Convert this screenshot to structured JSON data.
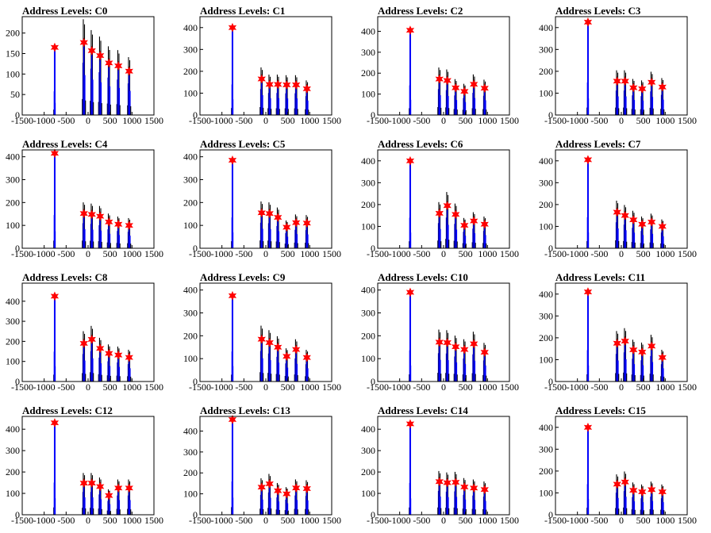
{
  "chart_data": [
    {
      "type": "histogram",
      "title": "Address Levels: C0",
      "xlim": [
        -1500,
        1500
      ],
      "ylim": [
        0,
        240
      ],
      "xticks": [
        -1500,
        -1000,
        -500,
        0,
        500,
        1000,
        1500
      ],
      "yticks": [
        0,
        50,
        100,
        150,
        200
      ],
      "main_peak": {
        "x": -760,
        "y": 165
      },
      "peaks": [
        {
          "x": -760,
          "y": 165
        },
        {
          "x": -95,
          "y": 177
        },
        {
          "x": 85,
          "y": 157
        },
        {
          "x": 275,
          "y": 145
        },
        {
          "x": 475,
          "y": 127
        },
        {
          "x": 690,
          "y": 120
        },
        {
          "x": 935,
          "y": 107
        }
      ]
    },
    {
      "type": "histogram",
      "title": "Address Levels: C1",
      "xlim": [
        -1500,
        1500
      ],
      "ylim": [
        0,
        450
      ],
      "xticks": [
        -1500,
        -1000,
        -500,
        0,
        500,
        1000,
        1500
      ],
      "yticks": [
        0,
        100,
        200,
        300,
        400
      ],
      "main_peak": {
        "x": -760,
        "y": 400
      },
      "peaks": [
        {
          "x": -760,
          "y": 400
        },
        {
          "x": -95,
          "y": 165
        },
        {
          "x": 85,
          "y": 140
        },
        {
          "x": 275,
          "y": 140
        },
        {
          "x": 475,
          "y": 138
        },
        {
          "x": 690,
          "y": 138
        },
        {
          "x": 935,
          "y": 120
        }
      ]
    },
    {
      "type": "histogram",
      "title": "Address Levels: C2",
      "xlim": [
        -1500,
        1500
      ],
      "ylim": [
        0,
        470
      ],
      "xticks": [
        -1500,
        -1000,
        -500,
        0,
        500,
        1000,
        1500
      ],
      "yticks": [
        0,
        100,
        200,
        300,
        400
      ],
      "main_peak": {
        "x": -760,
        "y": 405
      },
      "peaks": [
        {
          "x": -760,
          "y": 405
        },
        {
          "x": -95,
          "y": 172
        },
        {
          "x": 85,
          "y": 165
        },
        {
          "x": 275,
          "y": 130
        },
        {
          "x": 475,
          "y": 113
        },
        {
          "x": 690,
          "y": 147
        },
        {
          "x": 935,
          "y": 128
        }
      ]
    },
    {
      "type": "histogram",
      "title": "Address Levels: C3",
      "xlim": [
        -1500,
        1500
      ],
      "ylim": [
        0,
        450
      ],
      "xticks": [
        -1500,
        -1000,
        -500,
        0,
        500,
        1000,
        1500
      ],
      "yticks": [
        0,
        100,
        200,
        300,
        400
      ],
      "main_peak": {
        "x": -760,
        "y": 425
      },
      "peaks": [
        {
          "x": -760,
          "y": 425
        },
        {
          "x": -95,
          "y": 155
        },
        {
          "x": 85,
          "y": 155
        },
        {
          "x": 275,
          "y": 125
        },
        {
          "x": 475,
          "y": 120
        },
        {
          "x": 690,
          "y": 150
        },
        {
          "x": 935,
          "y": 128
        }
      ]
    },
    {
      "type": "histogram",
      "title": "Address Levels: C4",
      "xlim": [
        -1500,
        1500
      ],
      "ylim": [
        0,
        430
      ],
      "xticks": [
        -1500,
        -1000,
        -500,
        0,
        500,
        1000,
        1500
      ],
      "yticks": [
        0,
        100,
        200,
        300,
        400
      ],
      "main_peak": {
        "x": -760,
        "y": 415
      },
      "peaks": [
        {
          "x": -760,
          "y": 415
        },
        {
          "x": -95,
          "y": 152
        },
        {
          "x": 85,
          "y": 148
        },
        {
          "x": 275,
          "y": 140
        },
        {
          "x": 475,
          "y": 115
        },
        {
          "x": 690,
          "y": 105
        },
        {
          "x": 935,
          "y": 100
        }
      ]
    },
    {
      "type": "histogram",
      "title": "Address Levels: C5",
      "xlim": [
        -1500,
        1500
      ],
      "ylim": [
        0,
        430
      ],
      "xticks": [
        -1500,
        -1000,
        -500,
        0,
        500,
        1000,
        1500
      ],
      "yticks": [
        0,
        100,
        200,
        300,
        400
      ],
      "main_peak": {
        "x": -760,
        "y": 385
      },
      "peaks": [
        {
          "x": -760,
          "y": 385
        },
        {
          "x": -95,
          "y": 155
        },
        {
          "x": 85,
          "y": 152
        },
        {
          "x": 275,
          "y": 135
        },
        {
          "x": 475,
          "y": 92
        },
        {
          "x": 690,
          "y": 112
        },
        {
          "x": 935,
          "y": 110
        }
      ]
    },
    {
      "type": "histogram",
      "title": "Address Levels: C6",
      "xlim": [
        -1500,
        1500
      ],
      "ylim": [
        0,
        450
      ],
      "xticks": [
        -1500,
        -1000,
        -500,
        0,
        500,
        1000,
        1500
      ],
      "yticks": [
        0,
        100,
        200,
        300,
        400
      ],
      "main_peak": {
        "x": -760,
        "y": 400
      },
      "peaks": [
        {
          "x": -760,
          "y": 400
        },
        {
          "x": -95,
          "y": 160
        },
        {
          "x": 85,
          "y": 195
        },
        {
          "x": 275,
          "y": 155
        },
        {
          "x": 475,
          "y": 105
        },
        {
          "x": 690,
          "y": 125
        },
        {
          "x": 935,
          "y": 110
        }
      ]
    },
    {
      "type": "histogram",
      "title": "Address Levels: C7",
      "xlim": [
        -1500,
        1500
      ],
      "ylim": [
        0,
        450
      ],
      "xticks": [
        -1500,
        -1000,
        -500,
        0,
        500,
        1000,
        1500
      ],
      "yticks": [
        0,
        100,
        200,
        300,
        400
      ],
      "main_peak": {
        "x": -760,
        "y": 405
      },
      "peaks": [
        {
          "x": -760,
          "y": 405
        },
        {
          "x": -95,
          "y": 165
        },
        {
          "x": 85,
          "y": 150
        },
        {
          "x": 275,
          "y": 130
        },
        {
          "x": 475,
          "y": 110
        },
        {
          "x": 690,
          "y": 120
        },
        {
          "x": 935,
          "y": 100
        }
      ]
    },
    {
      "type": "histogram",
      "title": "Address Levels: C8",
      "xlim": [
        -1500,
        1500
      ],
      "ylim": [
        0,
        490
      ],
      "xticks": [
        -1500,
        -1000,
        -500,
        0,
        500,
        1000,
        1500
      ],
      "yticks": [
        0,
        100,
        200,
        300,
        400
      ],
      "main_peak": {
        "x": -760,
        "y": 425
      },
      "peaks": [
        {
          "x": -760,
          "y": 425
        },
        {
          "x": -95,
          "y": 190
        },
        {
          "x": 85,
          "y": 210
        },
        {
          "x": 275,
          "y": 165
        },
        {
          "x": 475,
          "y": 140
        },
        {
          "x": 690,
          "y": 132
        },
        {
          "x": 935,
          "y": 120
        }
      ]
    },
    {
      "type": "histogram",
      "title": "Address Levels: C9",
      "xlim": [
        -1500,
        1500
      ],
      "ylim": [
        0,
        430
      ],
      "xticks": [
        -1500,
        -1000,
        -500,
        0,
        500,
        1000,
        1500
      ],
      "yticks": [
        0,
        100,
        200,
        300,
        400
      ],
      "main_peak": {
        "x": -760,
        "y": 375
      },
      "peaks": [
        {
          "x": -760,
          "y": 375
        },
        {
          "x": -95,
          "y": 185
        },
        {
          "x": 85,
          "y": 170
        },
        {
          "x": 275,
          "y": 150
        },
        {
          "x": 475,
          "y": 110
        },
        {
          "x": 690,
          "y": 140
        },
        {
          "x": 935,
          "y": 105
        }
      ]
    },
    {
      "type": "histogram",
      "title": "Address Levels: C10",
      "xlim": [
        -1500,
        1500
      ],
      "ylim": [
        0,
        430
      ],
      "xticks": [
        -1500,
        -1000,
        -500,
        0,
        500,
        1000,
        1500
      ],
      "yticks": [
        0,
        100,
        200,
        300,
        400
      ],
      "main_peak": {
        "x": -760,
        "y": 390
      },
      "peaks": [
        {
          "x": -760,
          "y": 390
        },
        {
          "x": -95,
          "y": 172
        },
        {
          "x": 85,
          "y": 170
        },
        {
          "x": 275,
          "y": 152
        },
        {
          "x": 475,
          "y": 140
        },
        {
          "x": 690,
          "y": 165
        },
        {
          "x": 935,
          "y": 128
        }
      ]
    },
    {
      "type": "histogram",
      "title": "Address Levels: C11",
      "xlim": [
        -1500,
        1500
      ],
      "ylim": [
        0,
        450
      ],
      "xticks": [
        -1500,
        -1000,
        -500,
        0,
        500,
        1000,
        1500
      ],
      "yticks": [
        0,
        100,
        200,
        300,
        400
      ],
      "main_peak": {
        "x": -760,
        "y": 410
      },
      "peaks": [
        {
          "x": -760,
          "y": 410
        },
        {
          "x": -95,
          "y": 175
        },
        {
          "x": 85,
          "y": 185
        },
        {
          "x": 275,
          "y": 145
        },
        {
          "x": 475,
          "y": 135
        },
        {
          "x": 690,
          "y": 162
        },
        {
          "x": 935,
          "y": 110
        }
      ]
    },
    {
      "type": "histogram",
      "title": "Address Levels: C12",
      "xlim": [
        -1500,
        1500
      ],
      "ylim": [
        0,
        460
      ],
      "xticks": [
        -1500,
        -1000,
        -500,
        0,
        500,
        1000,
        1500
      ],
      "yticks": [
        0,
        100,
        200,
        300,
        400
      ],
      "main_peak": {
        "x": -760,
        "y": 430
      },
      "peaks": [
        {
          "x": -760,
          "y": 430
        },
        {
          "x": -95,
          "y": 148
        },
        {
          "x": 85,
          "y": 148
        },
        {
          "x": 275,
          "y": 132
        },
        {
          "x": 475,
          "y": 90
        },
        {
          "x": 690,
          "y": 125
        },
        {
          "x": 935,
          "y": 125
        }
      ]
    },
    {
      "type": "histogram",
      "title": "Address Levels: C13",
      "xlim": [
        -1500,
        1500
      ],
      "ylim": [
        0,
        470
      ],
      "xticks": [
        -1500,
        -1000,
        -500,
        0,
        500,
        1000,
        1500
      ],
      "yticks": [
        0,
        100,
        200,
        300,
        400
      ],
      "main_peak": {
        "x": -760,
        "y": 455
      },
      "peaks": [
        {
          "x": -760,
          "y": 455
        },
        {
          "x": -95,
          "y": 132
        },
        {
          "x": 85,
          "y": 148
        },
        {
          "x": 275,
          "y": 115
        },
        {
          "x": 475,
          "y": 100
        },
        {
          "x": 690,
          "y": 128
        },
        {
          "x": 935,
          "y": 125
        }
      ]
    },
    {
      "type": "histogram",
      "title": "Address Levels: C14",
      "xlim": [
        -1500,
        1500
      ],
      "ylim": [
        0,
        460
      ],
      "xticks": [
        -1500,
        -1000,
        -500,
        0,
        500,
        1000,
        1500
      ],
      "yticks": [
        0,
        100,
        200,
        300,
        400
      ],
      "main_peak": {
        "x": -760,
        "y": 425
      },
      "peaks": [
        {
          "x": -760,
          "y": 425
        },
        {
          "x": -95,
          "y": 155
        },
        {
          "x": 85,
          "y": 150
        },
        {
          "x": 275,
          "y": 152
        },
        {
          "x": 475,
          "y": 130
        },
        {
          "x": 690,
          "y": 125
        },
        {
          "x": 935,
          "y": 118
        }
      ]
    },
    {
      "type": "histogram",
      "title": "Address Levels: C15",
      "xlim": [
        -1500,
        1500
      ],
      "ylim": [
        0,
        450
      ],
      "xticks": [
        -1500,
        -1000,
        -500,
        0,
        500,
        1000,
        1500
      ],
      "yticks": [
        0,
        100,
        200,
        300,
        400
      ],
      "main_peak": {
        "x": -760,
        "y": 400
      },
      "peaks": [
        {
          "x": -760,
          "y": 400
        },
        {
          "x": -95,
          "y": 140
        },
        {
          "x": 85,
          "y": 150
        },
        {
          "x": 275,
          "y": 112
        },
        {
          "x": 475,
          "y": 105
        },
        {
          "x": 690,
          "y": 115
        },
        {
          "x": 935,
          "y": 105
        }
      ]
    }
  ],
  "colors": {
    "histogram_line": "#0000ff",
    "histogram_edge": "#000000",
    "marker": "#ff0000",
    "axis": "#000000"
  }
}
